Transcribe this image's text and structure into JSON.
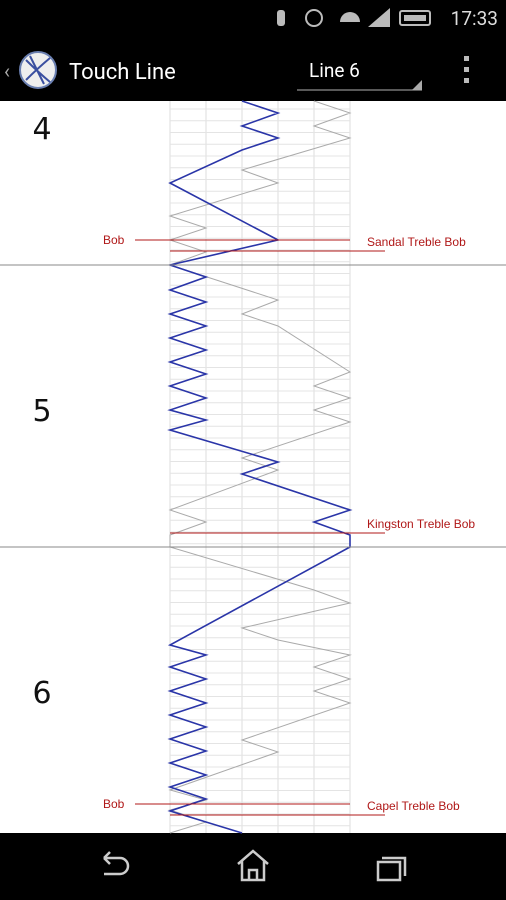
{
  "status_bar": {
    "time": "17:33"
  },
  "action_bar": {
    "title": "Touch Line",
    "spinner": "Line 6"
  },
  "leads": [
    {
      "number": "4",
      "left_label": "Bob",
      "right_label": "Sandal Treble Bob"
    },
    {
      "number": "5",
      "right_label": "Kingston Treble Bob"
    },
    {
      "number": "6",
      "left_label": "Bob",
      "right_label": "Capel Treble Bob"
    }
  ]
}
